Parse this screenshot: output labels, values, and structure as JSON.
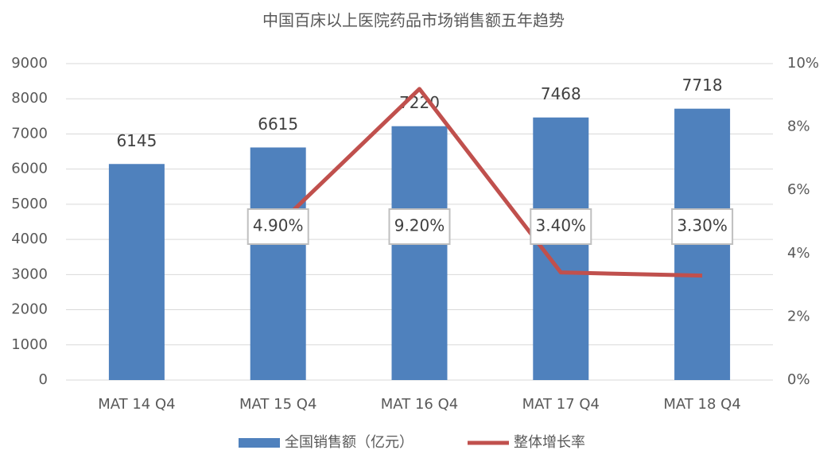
{
  "chart_data": {
    "type": "bar",
    "title": "中国百床以上医院药品市场销售额五年趋势",
    "categories": [
      "MAT 14 Q4",
      "MAT 15 Q4",
      "MAT 16 Q4",
      "MAT 17 Q4",
      "MAT 18 Q4"
    ],
    "series": [
      {
        "name": "全国销售额（亿元）",
        "type": "bar",
        "color": "#4f81bd",
        "values": [
          6145,
          6615,
          7220,
          7468,
          7718
        ]
      },
      {
        "name": "整体增长率",
        "type": "line",
        "axis": "y2",
        "color": "#c0504d",
        "values": [
          null,
          4.9,
          9.2,
          3.4,
          3.3
        ],
        "value_labels": [
          null,
          "4.90%",
          "9.20%",
          "3.40%",
          "3.30%"
        ]
      }
    ],
    "ylim": [
      0,
      9000
    ],
    "yticks": [
      0,
      1000,
      2000,
      3000,
      4000,
      5000,
      6000,
      7000,
      8000,
      9000
    ],
    "y2lim": [
      0,
      10
    ],
    "y2ticks": [
      {
        "value": 0,
        "label": "0%"
      },
      {
        "value": 2,
        "label": "2%"
      },
      {
        "value": 4,
        "label": "4%"
      },
      {
        "value": 6,
        "label": "6%"
      },
      {
        "value": 8,
        "label": "8%"
      },
      {
        "value": 10,
        "label": "10%"
      }
    ],
    "grid": true,
    "legend": "bottom"
  }
}
